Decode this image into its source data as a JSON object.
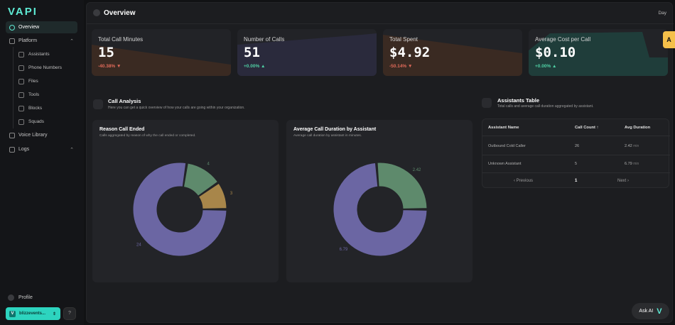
{
  "brand": "VAPI",
  "sidebar": {
    "overview": "Overview",
    "platform": "Platform",
    "sub": [
      "Assistants",
      "Phone Numbers",
      "Files",
      "Tools",
      "Blocks",
      "Squads"
    ],
    "voice_library": "Voice Library",
    "logs": "Logs",
    "profile": "Profile",
    "org": "blizzevents...",
    "help": "?"
  },
  "header": {
    "title": "Overview",
    "range": "Day"
  },
  "cards": [
    {
      "label": "Total Call Minutes",
      "value": "15",
      "change": "-40.38%",
      "dir": "▼",
      "color": "#e06a5a"
    },
    {
      "label": "Number of Calls",
      "value": "51",
      "change": "+0.00%",
      "dir": "▲",
      "color": "#4fd1a5"
    },
    {
      "label": "Total Spent",
      "value": "$4.92",
      "change": "-50.14%",
      "dir": "▼",
      "color": "#e06a5a"
    },
    {
      "label": "Average Cost per Call",
      "value": "$0.10",
      "change": "+0.00%",
      "dir": "▲",
      "color": "#4fd1a5"
    }
  ],
  "call_analysis": {
    "title": "Call Analysis",
    "subtitle": "Here you can get a quick overview of how your calls are going within your organization."
  },
  "assistants_section": {
    "title": "Assistants Table",
    "subtitle": "Total calls and average call duration aggregated by assistant."
  },
  "reason_chart": {
    "title": "Reason Call Ended",
    "subtitle": "Calls aggregated by reason of why the call ended or completed."
  },
  "duration_chart": {
    "title": "Average Call Duration by Assistant",
    "subtitle": "Average call duration by assistant in minutes."
  },
  "chart_data": [
    {
      "type": "pie",
      "title": "Reason Call Ended",
      "values": [
        24,
        4,
        3
      ],
      "labels": [
        "24",
        "4",
        "3"
      ],
      "colors": [
        "#6b66a3",
        "#5e8a6c",
        "#a8864a"
      ]
    },
    {
      "type": "pie",
      "title": "Average Call Duration by Assistant",
      "values": [
        6.79,
        2.42
      ],
      "labels": [
        "6.79",
        "2.42"
      ],
      "colors": [
        "#6b66a3",
        "#5e8a6c"
      ]
    }
  ],
  "table": {
    "headers": [
      "Assistant Name",
      "Call Count ↑",
      "Avg Duration"
    ],
    "rows": [
      {
        "name": "Outbound Cold Caller",
        "count": "26",
        "dur": "2.42",
        "unit": "min"
      },
      {
        "name": "Unknown Assistant",
        "count": "5",
        "dur": "6.79",
        "unit": "min"
      }
    ],
    "prev": "‹  Previous",
    "page": "1",
    "next": "Next  ›"
  },
  "ask_ai": "Ask AI",
  "side_tab": "A"
}
